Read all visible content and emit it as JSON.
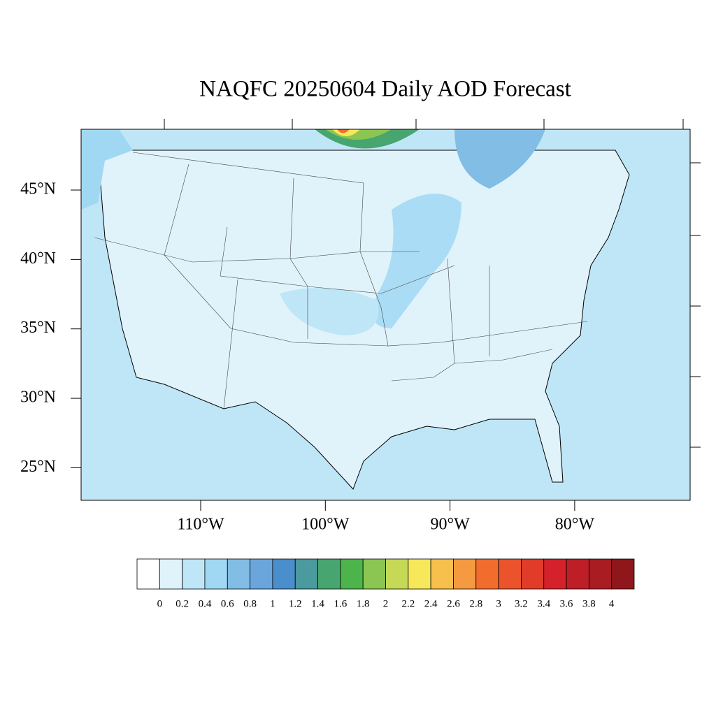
{
  "title": "NAQFC 20250604 Daily AOD Forecast",
  "lat_labels": [
    {
      "value": 45,
      "label": "45°N"
    },
    {
      "value": 40,
      "label": "40°N"
    },
    {
      "value": 35,
      "label": "35°N"
    },
    {
      "value": 30,
      "label": "30°N"
    },
    {
      "value": 25,
      "label": "25°N"
    }
  ],
  "lon_labels": [
    {
      "value": -110,
      "label": "110°W"
    },
    {
      "value": -100,
      "label": "100°W"
    },
    {
      "value": -90,
      "label": "90°W"
    },
    {
      "value": -80,
      "label": "80°W"
    }
  ],
  "colorbar": {
    "levels": [
      0,
      0.2,
      0.4,
      0.6,
      0.8,
      1,
      1.2,
      1.4,
      1.6,
      1.8,
      2,
      2.2,
      2.4,
      2.6,
      2.8,
      3,
      3.2,
      3.4,
      3.6,
      3.8,
      4
    ],
    "colors": [
      "#ffffff",
      "#e0f3fb",
      "#bfe6f7",
      "#a0d8f3",
      "#82bde6",
      "#6aa6dc",
      "#4a8ecb",
      "#4a9a9e",
      "#47a56f",
      "#4cb44a",
      "#8cc652",
      "#c6d957",
      "#f6e85a",
      "#f7bf4b",
      "#f59a40",
      "#f26c2e",
      "#ea532c",
      "#e13b2a",
      "#d5212a",
      "#be1e26",
      "#a91c22",
      "#8f171b"
    ]
  }
}
